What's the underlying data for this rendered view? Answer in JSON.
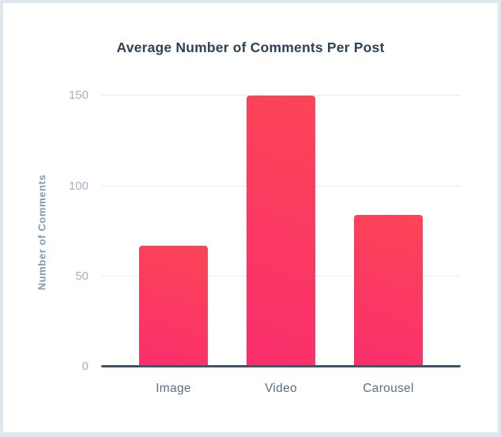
{
  "chart_data": {
    "type": "bar",
    "title": "Average Number of Comments Per Post",
    "xlabel": "",
    "ylabel": "Number of Comments",
    "categories": [
      "Image",
      "Video",
      "Carousel"
    ],
    "values": [
      67,
      150,
      84
    ],
    "y_ticks": [
      0,
      50,
      100,
      150
    ],
    "ylim": [
      0,
      155
    ],
    "grid": "horizontal-only",
    "legend": "none",
    "colors": {
      "bar_gradient_top": "#fc4456",
      "bar_gradient_bottom": "#fa2f6d",
      "title_text": "#2f4156",
      "y_axis_title_text": "#7e9ab8",
      "tick_label_text": "#9db1c8",
      "category_label_text": "#5a6e87",
      "axis_line": "#42536b",
      "gridline": "#e9edf2",
      "card_border": "#dfe7ee",
      "background": "#ffffff"
    }
  }
}
